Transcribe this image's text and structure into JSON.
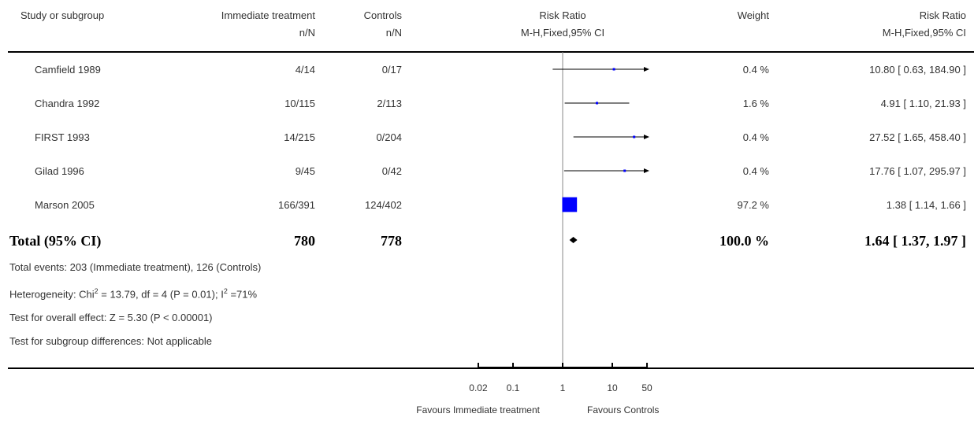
{
  "header": {
    "col_study": "Study or subgroup",
    "col_treat": "Immediate treatment",
    "col_treat_sub": "n/N",
    "col_ctrl": "Controls",
    "col_ctrl_sub": "n/N",
    "col_rr": "Risk Ratio",
    "col_rr_sub": "M-H,Fixed,95% CI",
    "col_weight": "Weight",
    "col_rr2": "Risk Ratio",
    "col_rr2_sub": "M-H,Fixed,95% CI"
  },
  "studies": [
    {
      "name": "Camfield 1989",
      "treat": "4/14",
      "ctrl": "0/17",
      "weight": "0.4 %",
      "ci_text": "10.80 [ 0.63, 184.90 ]"
    },
    {
      "name": "Chandra 1992",
      "treat": "10/115",
      "ctrl": "2/113",
      "weight": "1.6 %",
      "ci_text": "4.91 [ 1.10, 21.93 ]"
    },
    {
      "name": "FIRST 1993",
      "treat": "14/215",
      "ctrl": "0/204",
      "weight": "0.4 %",
      "ci_text": "27.52 [ 1.65, 458.40 ]"
    },
    {
      "name": "Gilad 1996",
      "treat": "9/45",
      "ctrl": "0/42",
      "weight": "0.4 %",
      "ci_text": "17.76 [ 1.07, 295.97 ]"
    },
    {
      "name": "Marson 2005",
      "treat": "166/391",
      "ctrl": "124/402",
      "weight": "97.2 %",
      "ci_text": "1.38 [ 1.14, 1.66 ]"
    }
  ],
  "total": {
    "label": "Total (95% CI)",
    "treat": "780",
    "ctrl": "778",
    "weight": "100.0 %",
    "ci_text": "1.64 [ 1.37, 1.97 ]"
  },
  "footnotes": {
    "events": "Total events: 203 (Immediate treatment), 126 (Controls)",
    "het_a": "Heterogeneity: Chi",
    "het_sup1": "2",
    "het_b": " = 13.79, df = 4 (P = 0.01); I",
    "het_sup2": "2",
    "het_c": " =71%",
    "overall": "Test for overall effect: Z = 5.30 (P < 0.00001)",
    "subgroup": "Test for subgroup differences: Not applicable"
  },
  "axis": {
    "favours_left": "Favours Immediate treatment",
    "favours_right": "Favours Controls"
  },
  "chart_data": {
    "type": "forest",
    "x_scale": "log",
    "xlim": [
      0.02,
      50
    ],
    "ticks": [
      {
        "value": 0.02,
        "label": "0.02"
      },
      {
        "value": 0.1,
        "label": "0.1"
      },
      {
        "value": 1,
        "label": "1"
      },
      {
        "value": 10,
        "label": "10"
      },
      {
        "value": 50,
        "label": "50"
      }
    ],
    "studies": [
      {
        "name": "Camfield 1989",
        "rr": 10.8,
        "lo": 0.63,
        "hi": 184.9,
        "weight": 0.4
      },
      {
        "name": "Chandra 1992",
        "rr": 4.91,
        "lo": 1.1,
        "hi": 21.93,
        "weight": 1.6
      },
      {
        "name": "FIRST 1993",
        "rr": 27.52,
        "lo": 1.65,
        "hi": 458.4,
        "weight": 0.4
      },
      {
        "name": "Gilad 1996",
        "rr": 17.76,
        "lo": 1.07,
        "hi": 295.97,
        "weight": 0.4
      },
      {
        "name": "Marson 2005",
        "rr": 1.38,
        "lo": 1.14,
        "hi": 1.66,
        "weight": 97.2
      }
    ],
    "total": {
      "rr": 1.64,
      "lo": 1.37,
      "hi": 1.97,
      "weight": 100.0
    },
    "colors": {
      "box": "#0000ff",
      "line": "#000000",
      "axis": "#000000",
      "null_line": "#888888"
    }
  }
}
